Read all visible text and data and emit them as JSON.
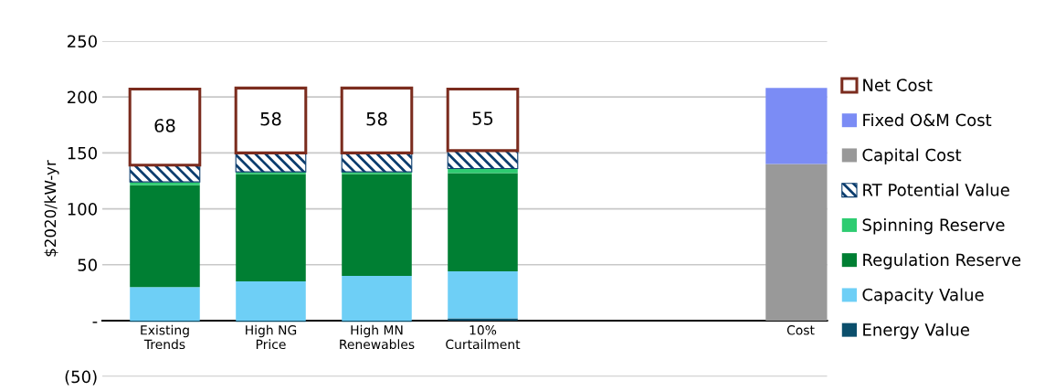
{
  "chart_data": {
    "type": "bar",
    "stacked": true,
    "ylabel": "$2020/kW-yr",
    "categories": [
      "Existing\nTrends",
      "High NG\nPrice",
      "High MN\nRenewables",
      "10%\nCurtailment",
      null,
      null,
      "Cost"
    ],
    "series": [
      {
        "name": "Energy Value",
        "color": "#0b4f6c",
        "values": [
          -1,
          -1,
          -1,
          2,
          null,
          null,
          null
        ]
      },
      {
        "name": "Capacity Value",
        "color": "#6ecff6",
        "values": [
          30,
          35,
          40,
          42,
          null,
          null,
          null
        ]
      },
      {
        "name": "Regulation Reserve",
        "color": "#007f33",
        "values": [
          91,
          96,
          91,
          88,
          null,
          null,
          null
        ]
      },
      {
        "name": "Spinning Reserve",
        "color": "#2ecc71",
        "values": [
          3,
          2,
          2,
          4,
          null,
          null,
          null
        ]
      },
      {
        "name": "RT Potential Value",
        "color": "#0b3d6e",
        "values": [
          15,
          17,
          17,
          16,
          null,
          null,
          null
        ]
      },
      {
        "name": "Capital Cost",
        "color": "#999999",
        "values": [
          null,
          null,
          null,
          null,
          null,
          null,
          140
        ]
      },
      {
        "name": "Fixed O&M Cost",
        "color": "#7b8cf5",
        "values": [
          null,
          null,
          null,
          null,
          null,
          null,
          68
        ]
      },
      {
        "name": "Net Cost",
        "color": "#7b2c1e",
        "values": [
          68,
          58,
          58,
          55,
          null,
          null,
          null
        ],
        "value_labels": [
          "68",
          "58",
          "58",
          "55",
          null,
          null,
          null
        ]
      }
    ],
    "ylim": [
      -50,
      250
    ],
    "yticks": [
      {
        "value": -50,
        "label": "(50)"
      },
      {
        "value": 0,
        "label": "-"
      },
      50,
      100,
      150,
      200,
      250
    ],
    "grid": "y",
    "legend": "right"
  }
}
